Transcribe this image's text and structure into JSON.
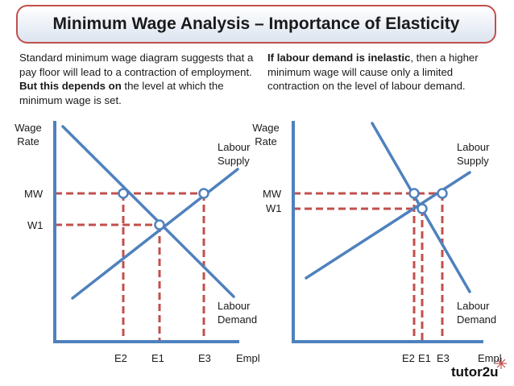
{
  "title": "Minimum Wage Analysis – Importance of Elasticity",
  "left_text": {
    "part1": "Standard minimum wage diagram suggests that a pay floor will lead to a contraction of employment. ",
    "bold": "But this depends on",
    "part2": " the level at which the minimum wage is set."
  },
  "right_text": {
    "bold": "If labour demand is inelastic",
    "part2": ", then a higher minimum wage will cause only a limited contraction on the level of labour demand."
  },
  "left_diagram": {
    "y_axis_label_line1": "Wage",
    "y_axis_label_line2": "Rate",
    "supply_line1": "Labour",
    "supply_line2": "Supply",
    "demand_line1": "Labour",
    "demand_line2": "Demand",
    "mw": "MW",
    "w1": "W1",
    "e2": "E2",
    "e1": "E1",
    "e3": "E3",
    "x_axis_label": "Empl"
  },
  "right_diagram": {
    "y_axis_label_line1": "Wage",
    "y_axis_label_line2": "Rate",
    "supply_line1": "Labour",
    "supply_line2": "Supply",
    "demand_line1": "Labour",
    "demand_line2": "Demand",
    "mw": "MW",
    "w1": "W1",
    "e2": "E2",
    "e1": "E1",
    "e3": "E3",
    "x_axis_label": "Empl"
  },
  "logo": {
    "text": "tutor2u"
  },
  "colors": {
    "axis": "#4f81bd",
    "curve": "#4f81bd",
    "dashed": "#c0504d",
    "title_border": "#c0504d"
  }
}
